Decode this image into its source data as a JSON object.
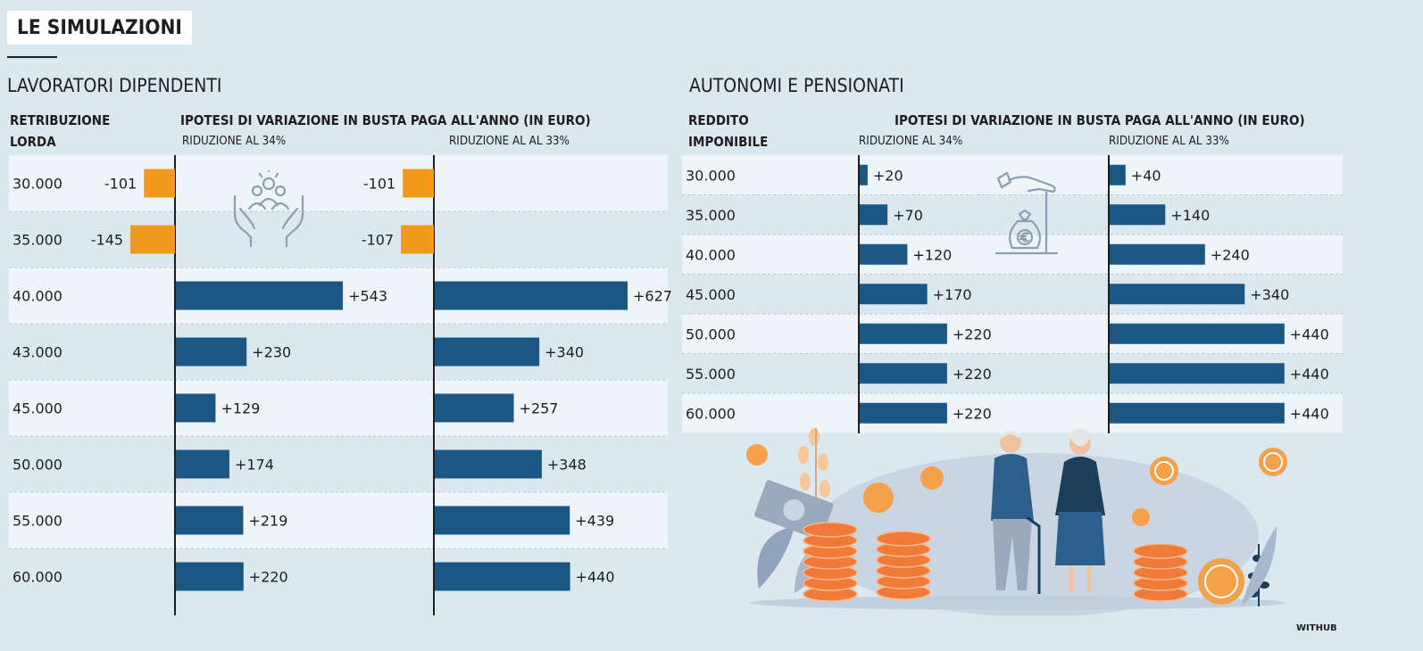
{
  "title": "LE SIMULAZIONI",
  "credit": "WITHUB",
  "colors": {
    "positive": "#1b5784",
    "negative": "#f39a1e",
    "row_light": "#eef5f9",
    "row_dark": "#dbe8f0",
    "axis": "#1e1e1e"
  },
  "chart_data": [
    {
      "type": "bar",
      "section_title": "LAVORATORI DIPENDENTI",
      "category_header": [
        "RETRIBUZIONE",
        "LORDA"
      ],
      "value_header": "IPOTESI DI VARIAZIONE IN BUSTA PAGA ALL'ANNO (IN EURO)",
      "categories": [
        "30.000",
        "35.000",
        "40.000",
        "43.000",
        "45.000",
        "50.000",
        "55.000",
        "60.000"
      ],
      "series": [
        {
          "name": "RIDUZIONE AL 34%",
          "values": [
            -101,
            -145,
            543,
            230,
            129,
            174,
            219,
            220
          ],
          "labels": [
            "-101",
            "-145",
            "+543",
            "+230",
            "+129",
            "+174",
            "+219",
            "+220"
          ]
        },
        {
          "name": "RIDUZIONE AL AL 33%",
          "values": [
            -101,
            -107,
            627,
            340,
            257,
            348,
            439,
            440
          ],
          "labels": [
            "-101",
            "-107",
            "+627",
            "+340",
            "+257",
            "+348",
            "+439",
            "+440"
          ]
        }
      ],
      "icon": "caring-hands-people-icon"
    },
    {
      "type": "bar",
      "section_title": "AUTONOMI E PENSIONATI",
      "category_header": [
        "REDDITO",
        "IMPONIBILE"
      ],
      "value_header": "IPOTESI DI VARIAZIONE IN BUSTA PAGA ALL'ANNO (IN EURO)",
      "categories": [
        "30.000",
        "35.000",
        "40.000",
        "45.000",
        "50.000",
        "55.000",
        "60.000"
      ],
      "series": [
        {
          "name": "RIDUZIONE AL 34%",
          "values": [
            20,
            70,
            120,
            170,
            220,
            220,
            220
          ],
          "labels": [
            "+20",
            "+70",
            "+120",
            "+170",
            "+220",
            "+220",
            "+220"
          ]
        },
        {
          "name": "RIDUZIONE AL AL 33%",
          "values": [
            40,
            140,
            240,
            340,
            440,
            440,
            440
          ],
          "labels": [
            "+40",
            "+140",
            "+240",
            "+340",
            "+440",
            "+440",
            "+440"
          ]
        }
      ],
      "icon": "hand-money-bag-icon"
    }
  ],
  "illustration": "elderly-couple-coins-illustration"
}
